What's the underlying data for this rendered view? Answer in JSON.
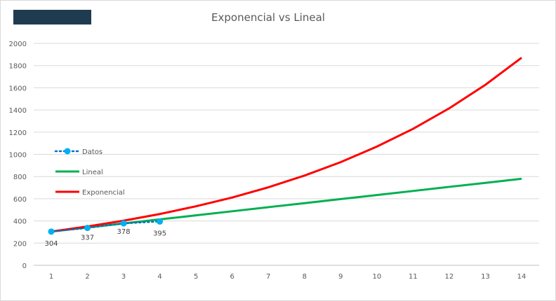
{
  "chart_data": {
    "type": "line",
    "title": "Exponencial vs Lineal",
    "x": [
      1,
      2,
      3,
      4,
      5,
      6,
      7,
      8,
      9,
      10,
      11,
      12,
      13,
      14
    ],
    "ylim": [
      0,
      2000
    ],
    "yticks": [
      0,
      200,
      400,
      600,
      800,
      1000,
      1200,
      1400,
      1600,
      1800,
      2000
    ],
    "grid": true,
    "legend_placement": "left-center",
    "series": [
      {
        "name": "Datos",
        "x": [
          1,
          2,
          3,
          4
        ],
        "values": [
          304,
          337,
          378,
          395
        ],
        "color": "#0070c0",
        "marker_color": "#00b0f0",
        "style": "dotted",
        "data_labels": [
          "304",
          "337",
          "378",
          "395"
        ]
      },
      {
        "name": "Lineal",
        "x": [
          1,
          2,
          3,
          4,
          5,
          6,
          7,
          8,
          9,
          10,
          11,
          12,
          13,
          14
        ],
        "values": [
          304,
          341,
          377,
          414,
          450,
          487,
          524,
          560,
          597,
          633,
          670,
          707,
          743,
          780
        ],
        "color": "#00b050",
        "style": "solid"
      },
      {
        "name": "Exponencial",
        "x": [
          1,
          2,
          3,
          4,
          5,
          6,
          7,
          8,
          9,
          10,
          11,
          12,
          13,
          14
        ],
        "values": [
          304,
          350,
          402,
          462,
          532,
          611,
          703,
          809,
          930,
          1070,
          1230,
          1415,
          1627,
          1871
        ],
        "color": "#ff0000",
        "style": "solid"
      }
    ],
    "banner_color": "#1f3b50"
  }
}
